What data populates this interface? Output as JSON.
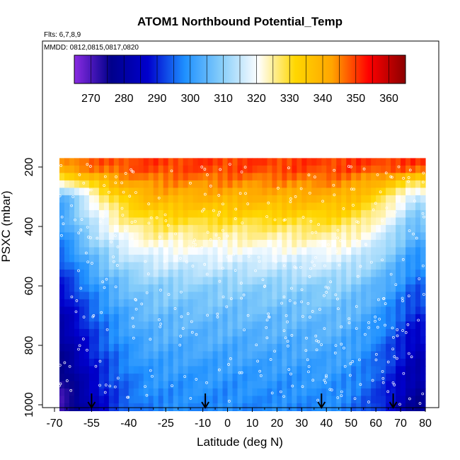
{
  "chart_data": {
    "type": "heatmap",
    "title": "ATOM1 Northbound Potential_Temp",
    "flights_label": "Flts: 6,7,8,9",
    "dates_label": "MMDD: 0812,0815,0817,0820",
    "xlabel": "Latitude (deg N)",
    "ylabel": "PSXC (mbar)",
    "xlim": [
      -70,
      80
    ],
    "ylim": [
      1000,
      150
    ],
    "y_reversed": true,
    "grid": false,
    "x_tick_labels": [
      "-70",
      "-55",
      "-40",
      "-25",
      "-10",
      "0",
      "10",
      "20",
      "30",
      "40",
      "50",
      "60",
      "70",
      "80"
    ],
    "x_tick_values": [
      -70,
      -55,
      -40,
      -25,
      -10,
      0,
      10,
      20,
      30,
      40,
      50,
      60,
      70,
      80
    ],
    "y_tick_labels": [
      "200",
      "400",
      "600",
      "800",
      "1000"
    ],
    "y_tick_values": [
      200,
      400,
      600,
      800,
      1000
    ],
    "colorbar": {
      "ticks": [
        "270",
        "280",
        "290",
        "300",
        "310",
        "320",
        "330",
        "340",
        "350",
        "360"
      ],
      "tick_values": [
        270,
        280,
        290,
        300,
        310,
        320,
        330,
        340,
        350,
        360
      ],
      "range": [
        265,
        365
      ],
      "colors": [
        "#8a2be2",
        "#00008b",
        "#0000cd",
        "#1e90ff",
        "#87cefa",
        "#ffffff",
        "#ffd700",
        "#ffa500",
        "#ff0000",
        "#8b0000"
      ]
    },
    "sounding_arrows_lat": [
      -55,
      -9,
      38,
      67
    ],
    "data_coverage": {
      "lat_range": [
        -68,
        80
      ],
      "p_range": [
        1000,
        170
      ]
    },
    "profile": {
      "pressure": [
        1000,
        900,
        800,
        700,
        600,
        500,
        400,
        300,
        250,
        200
      ],
      "theta_tropics": [
        298,
        300,
        303,
        306,
        310,
        318,
        328,
        340,
        345,
        350
      ],
      "theta_south_pole": [
        272,
        276,
        280,
        284,
        290,
        296,
        302,
        305,
        325,
        345
      ],
      "theta_north_pole": [
        278,
        282,
        285,
        290,
        295,
        300,
        306,
        315,
        330,
        350
      ]
    }
  }
}
